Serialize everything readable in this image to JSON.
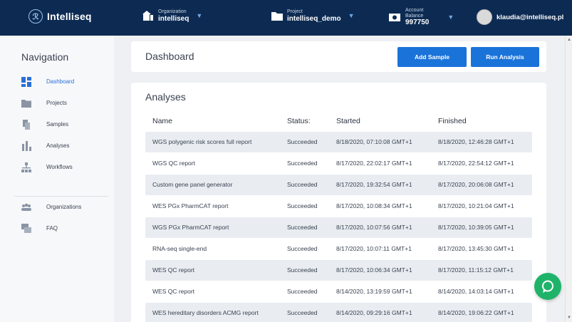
{
  "topbar": {
    "brand": "Intelliseq",
    "organization": {
      "label": "Organization",
      "value": "intelliseq"
    },
    "project": {
      "label": "Project",
      "value": "intelliseq_demo"
    },
    "account": {
      "label_line1": "Account",
      "label_line2": "Balance",
      "value": "997750"
    },
    "user_email": "klaudia@intelliseq.pl"
  },
  "sidebar": {
    "title": "Navigation",
    "items": [
      {
        "label": "Dashboard"
      },
      {
        "label": "Projects"
      },
      {
        "label": "Samples"
      },
      {
        "label": "Analyses"
      },
      {
        "label": "Workflows"
      },
      {
        "label": "Organizations"
      },
      {
        "label": "FAQ"
      }
    ]
  },
  "dashboard": {
    "title": "Dashboard",
    "add_sample_label": "Add Sample",
    "run_analysis_label": "Run Analysis"
  },
  "analyses": {
    "title": "Analyses",
    "columns": [
      "Name",
      "Status:",
      "Started",
      "Finished"
    ],
    "rows": [
      {
        "name": "WGS polygenic risk scores full report",
        "status": "Succeeded",
        "started": "8/18/2020, 07:10:08 GMT+1",
        "finished": "8/18/2020, 12:46:28 GMT+1"
      },
      {
        "name": "WGS QC report",
        "status": "Succeeded",
        "started": "8/17/2020, 22:02:17 GMT+1",
        "finished": "8/17/2020, 22:54:12 GMT+1"
      },
      {
        "name": "Custom gene panel generator",
        "status": "Succeeded",
        "started": "8/17/2020, 19:32:54 GMT+1",
        "finished": "8/17/2020, 20:06:08 GMT+1"
      },
      {
        "name": "WES PGx PharmCAT report",
        "status": "Succeeded",
        "started": "8/17/2020, 10:08:34 GMT+1",
        "finished": "8/17/2020, 10:21:04 GMT+1"
      },
      {
        "name": "WGS PGx PharmCAT report",
        "status": "Succeeded",
        "started": "8/17/2020, 10:07:56 GMT+1",
        "finished": "8/17/2020, 10:39:05 GMT+1"
      },
      {
        "name": "RNA-seq single-end",
        "status": "Succeeded",
        "started": "8/17/2020, 10:07:11 GMT+1",
        "finished": "8/17/2020, 13:45:30 GMT+1"
      },
      {
        "name": "WES QC report",
        "status": "Succeeded",
        "started": "8/17/2020, 10:06:34 GMT+1",
        "finished": "8/17/2020, 11:15:12 GMT+1"
      },
      {
        "name": "WES QC report",
        "status": "Succeeded",
        "started": "8/14/2020, 13:19:59 GMT+1",
        "finished": "8/14/2020, 14:03:14 GMT+1"
      },
      {
        "name": "WES hereditary disorders ACMG report",
        "status": "Succeeded",
        "started": "8/14/2020, 09:29:16 GMT+1",
        "finished": "8/14/2020, 19:06:22 GMT+1"
      }
    ]
  },
  "colors": {
    "topbar": "#0d2b52",
    "accent": "#1a73d9",
    "chat": "#1fb36a",
    "row_shade": "#e9edf2"
  },
  "icons": [
    "brand-logo-icon",
    "organization-icon",
    "project-folder-icon",
    "account-balance-icon",
    "chevron-down-icon",
    "dashboard-icon",
    "projects-icon",
    "samples-icon",
    "analyses-icon",
    "workflows-icon",
    "organizations-icon",
    "faq-icon",
    "chat-icon"
  ]
}
